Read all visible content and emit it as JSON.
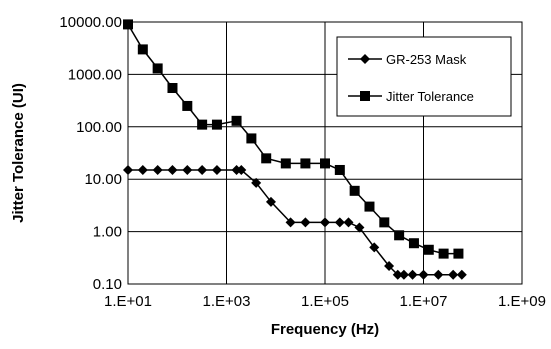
{
  "chart_data": {
    "type": "line",
    "xlabel": "Frequency (Hz)",
    "ylabel": "Jitter Tolerance (UI)",
    "x_scale": "log",
    "y_scale": "log",
    "xlim": [
      10,
      1000000000
    ],
    "ylim": [
      0.1,
      10000
    ],
    "x_ticks": [
      {
        "value": 10,
        "label": "1.E+01"
      },
      {
        "value": 1000,
        "label": "1.E+03"
      },
      {
        "value": 100000,
        "label": "1.E+05"
      },
      {
        "value": 10000000,
        "label": "1.E+07"
      },
      {
        "value": 1000000000,
        "label": "1.E+09"
      }
    ],
    "y_ticks": [
      {
        "value": 10000,
        "label": "10000.00"
      },
      {
        "value": 1000,
        "label": "1000.00"
      },
      {
        "value": 100,
        "label": "100.00"
      },
      {
        "value": 10,
        "label": "10.00"
      },
      {
        "value": 1,
        "label": "1.00"
      },
      {
        "value": 0.1,
        "label": "0.10"
      }
    ],
    "grid": true,
    "legend_position": "top-right",
    "series": [
      {
        "name": "GR-253 Mask",
        "marker": "diamond",
        "color": "#000000",
        "x": [
          10,
          20,
          40,
          80,
          160,
          320,
          640,
          1600,
          2000,
          4000,
          8000,
          20000,
          40000,
          100000,
          200000,
          300000,
          500000,
          1000000,
          2000000,
          3000000,
          4000000,
          6000000,
          10000000,
          20000000,
          40000000,
          60000000
        ],
        "y": [
          15,
          15,
          15,
          15,
          15,
          15,
          15,
          15,
          15,
          8.5,
          3.7,
          1.5,
          1.5,
          1.5,
          1.5,
          1.5,
          1.2,
          0.5,
          0.22,
          0.15,
          0.15,
          0.15,
          0.15,
          0.15,
          0.15,
          0.15
        ]
      },
      {
        "name": "Jitter Tolerance",
        "marker": "square",
        "color": "#000000",
        "x": [
          10,
          20,
          40,
          80,
          160,
          320,
          640,
          1600,
          3200,
          6400,
          16000,
          40000,
          100000,
          200000,
          400000,
          800000,
          1600000,
          3200000,
          6400000,
          12800000,
          25600000,
          51200000
        ],
        "y": [
          9000,
          3000,
          1300,
          550,
          250,
          110,
          110,
          130,
          60,
          25,
          20,
          20,
          20,
          15,
          6,
          3,
          1.5,
          0.85,
          0.6,
          0.45,
          0.38,
          0.38
        ]
      }
    ]
  }
}
